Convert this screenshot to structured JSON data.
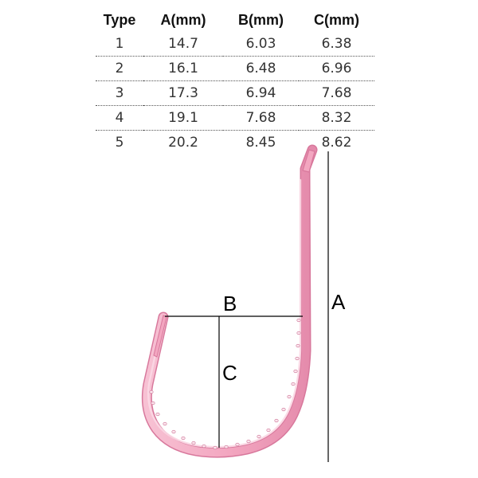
{
  "table": {
    "headers": [
      "Type",
      "A(mm)",
      "B(mm)",
      "C(mm)"
    ],
    "rows": [
      [
        "1",
        "14.7",
        "6.03",
        "6.38"
      ],
      [
        "2",
        "16.1",
        "6.48",
        "6.96"
      ],
      [
        "3",
        "17.3",
        "6.94",
        "7.68"
      ],
      [
        "4",
        "19.1",
        "7.68",
        "8.32"
      ],
      [
        "5",
        "20.2",
        "8.45",
        "8.62"
      ]
    ]
  },
  "diagram": {
    "label_a": "A",
    "label_b": "B",
    "label_c": "C",
    "hook_color": "#f3a6c0",
    "hook_highlight": "#fbd8e4",
    "hook_shadow": "#d8789c",
    "line_color": "#000000"
  }
}
